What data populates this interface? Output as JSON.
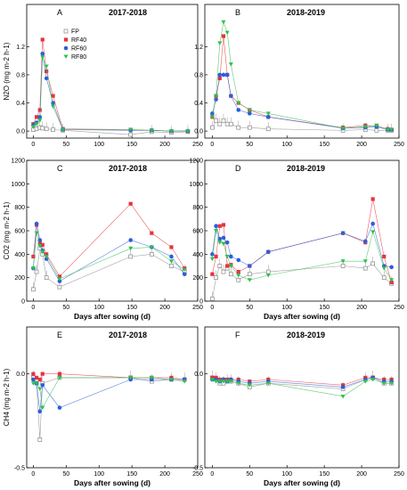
{
  "colors": {
    "FP": "#888888",
    "RF40": "#e8323c",
    "RF60": "#2b5fd9",
    "RF80": "#2fbf4f",
    "axis": "#000000"
  },
  "legend": [
    "FP",
    "RF40",
    "RF60",
    "RF80"
  ],
  "chart_data": [
    {
      "panel": "A",
      "title": "2017-2018",
      "type": "line",
      "ylabel": "N2O (mg m-2 h-1)",
      "xlabel": "",
      "xlim": [
        -10,
        250
      ],
      "ylim": [
        -0.1,
        1.8
      ],
      "yticks": [
        "0.0",
        "0.4",
        "0.8",
        "1.2"
      ],
      "xticks": [
        "0",
        "50",
        "100",
        "150",
        "200",
        "250"
      ],
      "series": [
        {
          "name": "FP",
          "x": [
            0,
            5,
            10,
            14,
            20,
            30,
            45,
            148,
            180,
            210,
            235
          ],
          "y": [
            0.02,
            0.03,
            0.05,
            0.04,
            0.03,
            0.02,
            0.01,
            -0.05,
            -0.01,
            -0.02,
            -0.01
          ]
        },
        {
          "name": "RF40",
          "x": [
            0,
            5,
            10,
            14,
            20,
            30,
            45,
            148,
            180,
            210,
            235
          ],
          "y": [
            0.1,
            0.2,
            0.3,
            1.3,
            0.85,
            0.5,
            0.03,
            0.02,
            0.01,
            0.0,
            0.0
          ]
        },
        {
          "name": "RF60",
          "x": [
            0,
            5,
            10,
            14,
            20,
            30,
            45,
            148,
            180,
            210,
            235
          ],
          "y": [
            0.08,
            0.12,
            0.2,
            1.1,
            0.75,
            0.4,
            0.02,
            0.01,
            0.01,
            0.0,
            0.0
          ]
        },
        {
          "name": "RF80",
          "x": [
            0,
            5,
            10,
            14,
            20,
            30,
            45,
            148,
            180,
            210,
            235
          ],
          "y": [
            0.06,
            0.1,
            0.15,
            1.05,
            0.92,
            0.35,
            0.02,
            0.02,
            0.01,
            0.0,
            0.0
          ]
        }
      ]
    },
    {
      "panel": "B",
      "title": "2018-2019",
      "type": "line",
      "ylabel": "",
      "xlabel": "",
      "xlim": [
        -10,
        250
      ],
      "ylim": [
        -0.1,
        1.8
      ],
      "yticks": [
        "0.0",
        "0.4",
        "0.8",
        "1.2"
      ],
      "xticks": [
        "0",
        "50",
        "100",
        "150",
        "200",
        "250"
      ],
      "series": [
        {
          "name": "FP",
          "x": [
            0,
            5,
            10,
            15,
            20,
            25,
            35,
            50,
            75,
            175,
            205,
            220,
            235,
            240
          ],
          "y": [
            0.05,
            0.15,
            0.1,
            0.15,
            0.1,
            0.1,
            0.05,
            0.05,
            0.03,
            0.01,
            0.02,
            0.01,
            0.01,
            0.01
          ]
        },
        {
          "name": "RF40",
          "x": [
            0,
            5,
            10,
            15,
            20,
            25,
            35,
            50,
            75,
            175,
            205,
            220,
            235,
            240
          ],
          "y": [
            0.2,
            0.5,
            0.75,
            1.35,
            0.8,
            0.5,
            0.4,
            0.3,
            0.2,
            0.05,
            0.08,
            0.07,
            0.03,
            0.02
          ]
        },
        {
          "name": "RF60",
          "x": [
            0,
            5,
            10,
            15,
            20,
            25,
            35,
            50,
            75,
            175,
            205,
            220,
            235,
            240
          ],
          "y": [
            0.25,
            0.45,
            0.8,
            0.8,
            0.8,
            0.5,
            0.3,
            0.25,
            0.2,
            0.04,
            0.05,
            0.06,
            0.02,
            0.02
          ]
        },
        {
          "name": "RF80",
          "x": [
            0,
            5,
            10,
            15,
            20,
            25,
            35,
            50,
            75,
            175,
            205,
            220,
            235,
            240
          ],
          "y": [
            0.2,
            0.5,
            1.25,
            1.55,
            1.4,
            0.95,
            0.4,
            0.3,
            0.25,
            0.04,
            0.06,
            0.08,
            0.02,
            0.02
          ]
        }
      ]
    },
    {
      "panel": "C",
      "title": "2017-2018",
      "type": "line",
      "ylabel": "CO2 (mg m-2 h-1)",
      "xlabel": "Days after sowing (d)",
      "xlim": [
        -10,
        250
      ],
      "ylim": [
        0,
        1200
      ],
      "yticks": [
        "0",
        "200",
        "400",
        "600",
        "800",
        "1000",
        "1200"
      ],
      "xticks": [
        "0",
        "50",
        "100",
        "150",
        "200",
        "250"
      ],
      "series": [
        {
          "name": "FP",
          "x": [
            0,
            5,
            10,
            14,
            20,
            40,
            148,
            180,
            210,
            230
          ],
          "y": [
            100,
            250,
            450,
            400,
            200,
            120,
            380,
            400,
            300,
            250
          ]
        },
        {
          "name": "RF40",
          "x": [
            0,
            5,
            10,
            14,
            20,
            40,
            148,
            180,
            210,
            230
          ],
          "y": [
            380,
            650,
            500,
            480,
            400,
            210,
            830,
            580,
            460,
            280
          ]
        },
        {
          "name": "RF60",
          "x": [
            0,
            5,
            10,
            14,
            20,
            40,
            148,
            180,
            210,
            230
          ],
          "y": [
            280,
            660,
            520,
            430,
            360,
            170,
            520,
            460,
            380,
            230
          ]
        },
        {
          "name": "RF80",
          "x": [
            0,
            5,
            10,
            14,
            20,
            40,
            148,
            180,
            210,
            230
          ],
          "y": [
            280,
            580,
            470,
            420,
            380,
            190,
            450,
            460,
            340,
            270
          ]
        }
      ]
    },
    {
      "panel": "D",
      "title": "2018-2019",
      "type": "line",
      "ylabel": "",
      "xlabel": "Days after sowing (d)",
      "xlim": [
        -10,
        250
      ],
      "ylim": [
        0,
        1200
      ],
      "yticks": [
        "0",
        "200",
        "400",
        "600",
        "800",
        "1000",
        "1200"
      ],
      "xticks": [
        "0",
        "50",
        "100",
        "150",
        "200",
        "250"
      ],
      "series": [
        {
          "name": "FP",
          "x": [
            0,
            5,
            10,
            15,
            20,
            25,
            35,
            50,
            75,
            175,
            205,
            215,
            230,
            240
          ],
          "y": [
            20,
            200,
            300,
            250,
            280,
            230,
            180,
            230,
            250,
            300,
            280,
            320,
            200,
            150
          ]
        },
        {
          "name": "RF40",
          "x": [
            0,
            5,
            10,
            15,
            20,
            25,
            35,
            50,
            75,
            175,
            205,
            215,
            230,
            240
          ],
          "y": [
            230,
            380,
            640,
            650,
            300,
            310,
            250,
            300,
            420,
            580,
            500,
            870,
            380,
            160
          ]
        },
        {
          "name": "RF60",
          "x": [
            0,
            5,
            10,
            15,
            20,
            25,
            35,
            50,
            75,
            175,
            205,
            215,
            230,
            240
          ],
          "y": [
            400,
            640,
            530,
            540,
            500,
            380,
            350,
            300,
            420,
            580,
            510,
            660,
            300,
            290
          ]
        },
        {
          "name": "RF80",
          "x": [
            0,
            5,
            10,
            15,
            20,
            25,
            35,
            50,
            75,
            175,
            205,
            215,
            230,
            240
          ],
          "y": [
            360,
            600,
            500,
            490,
            380,
            300,
            220,
            180,
            220,
            340,
            340,
            590,
            280,
            180
          ]
        }
      ]
    },
    {
      "panel": "E",
      "title": "2017-2018",
      "type": "line",
      "ylabel": "CH4 (mg m-2 h-1)",
      "xlabel": "Days after sowing (d)",
      "xlim": [
        -10,
        250
      ],
      "ylim": [
        -0.5,
        0.25
      ],
      "yticks": [
        "-0.5",
        "0.0"
      ],
      "xticks": [
        "0",
        "50",
        "100",
        "150",
        "200",
        "250"
      ],
      "series": [
        {
          "name": "FP",
          "x": [
            0,
            5,
            10,
            14,
            40,
            148,
            180,
            210,
            230
          ],
          "y": [
            -0.02,
            -0.05,
            -0.35,
            -0.05,
            -0.02,
            -0.02,
            -0.04,
            -0.03,
            -0.03
          ]
        },
        {
          "name": "RF40",
          "x": [
            0,
            5,
            10,
            14,
            40,
            148,
            180,
            210,
            230
          ],
          "y": [
            0.0,
            -0.02,
            -0.03,
            0.0,
            0.0,
            -0.02,
            -0.02,
            -0.02,
            -0.03
          ]
        },
        {
          "name": "RF60",
          "x": [
            0,
            5,
            10,
            14,
            40,
            148,
            180,
            210,
            230
          ],
          "y": [
            -0.03,
            -0.05,
            -0.2,
            -0.06,
            -0.18,
            -0.03,
            -0.03,
            -0.03,
            -0.03
          ]
        },
        {
          "name": "RF80",
          "x": [
            0,
            5,
            10,
            14,
            40,
            148,
            180,
            210,
            230
          ],
          "y": [
            -0.05,
            -0.05,
            -0.08,
            -0.18,
            -0.02,
            -0.02,
            -0.02,
            -0.03,
            -0.04
          ]
        }
      ]
    },
    {
      "panel": "F",
      "title": "2018-2019",
      "type": "line",
      "ylabel": "",
      "xlabel": "Days after sowing (d)",
      "xlim": [
        -10,
        250
      ],
      "ylim": [
        -0.5,
        0.25
      ],
      "yticks": [
        "-0.5",
        "0.0"
      ],
      "xticks": [
        "0",
        "50",
        "100",
        "150",
        "200",
        "250"
      ],
      "series": [
        {
          "name": "FP",
          "x": [
            0,
            5,
            10,
            15,
            20,
            25,
            35,
            50,
            75,
            175,
            205,
            215,
            230,
            240
          ],
          "y": [
            -0.02,
            -0.03,
            -0.05,
            -0.05,
            -0.04,
            -0.04,
            -0.05,
            -0.07,
            -0.05,
            -0.08,
            -0.03,
            -0.02,
            -0.05,
            -0.05
          ]
        },
        {
          "name": "RF40",
          "x": [
            0,
            5,
            10,
            15,
            20,
            25,
            35,
            50,
            75,
            175,
            205,
            215,
            230,
            240
          ],
          "y": [
            -0.02,
            -0.02,
            -0.03,
            -0.03,
            -0.03,
            -0.03,
            -0.03,
            -0.04,
            -0.03,
            -0.06,
            -0.02,
            -0.02,
            -0.03,
            -0.03
          ]
        },
        {
          "name": "RF60",
          "x": [
            0,
            5,
            10,
            15,
            20,
            25,
            35,
            50,
            75,
            175,
            205,
            215,
            230,
            240
          ],
          "y": [
            -0.03,
            -0.03,
            -0.04,
            -0.03,
            -0.04,
            -0.03,
            -0.04,
            -0.05,
            -0.04,
            -0.07,
            -0.03,
            -0.02,
            -0.04,
            -0.04
          ]
        },
        {
          "name": "RF80",
          "x": [
            0,
            5,
            10,
            15,
            20,
            25,
            35,
            50,
            75,
            175,
            205,
            215,
            230,
            240
          ],
          "y": [
            -0.03,
            -0.04,
            -0.04,
            -0.04,
            -0.04,
            -0.04,
            -0.05,
            -0.06,
            -0.05,
            -0.12,
            -0.04,
            -0.03,
            -0.05,
            -0.05
          ]
        }
      ]
    }
  ]
}
